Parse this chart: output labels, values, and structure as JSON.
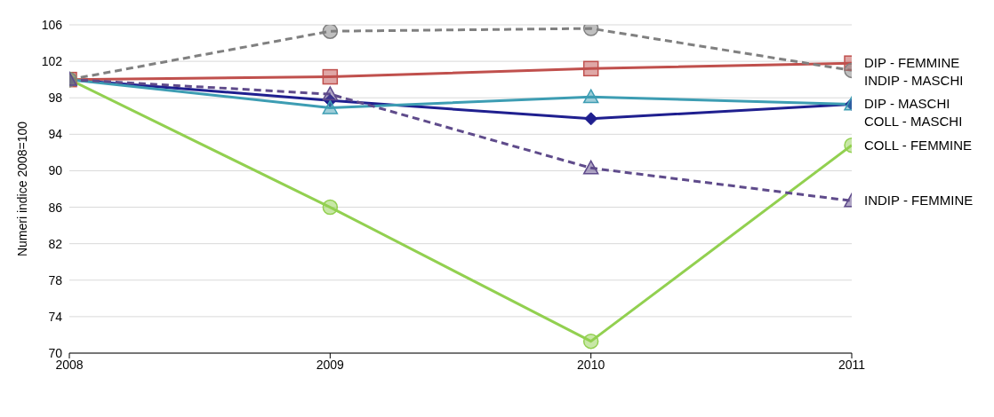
{
  "chart_data": {
    "type": "line",
    "ylabel": "Numeri indice 2008=100",
    "x": [
      2008,
      2009,
      2010,
      2011
    ],
    "xlim": [
      2008,
      2011
    ],
    "xticks": [
      2008,
      2009,
      2010,
      2011
    ],
    "ylim": [
      70,
      106
    ],
    "yticks": [
      70,
      74,
      78,
      82,
      86,
      90,
      94,
      98,
      102,
      106
    ],
    "grid": "y",
    "legend": false,
    "series": [
      {
        "name": "DIP - MASCHI",
        "color": "#1f1f8f",
        "values": [
          100,
          97.7,
          95.7,
          97.3
        ],
        "marker": "diamond",
        "line_style": "solid"
      },
      {
        "name": "DIP - FEMMINE",
        "color": "#c0504d",
        "values": [
          100,
          100.3,
          101.2,
          101.8
        ],
        "marker": "square",
        "line_style": "solid"
      },
      {
        "name": "COLL - MASCHI",
        "color": "#3d9db3",
        "values": [
          100,
          96.9,
          98.1,
          97.3
        ],
        "marker": "triangle",
        "line_style": "solid"
      },
      {
        "name": "COLL - FEMMINE",
        "color": "#92d050",
        "values": [
          100,
          86.0,
          71.3,
          92.8
        ],
        "marker": "circle",
        "line_style": "solid"
      },
      {
        "name": "INDIP - MASCHI",
        "color": "#808080",
        "values": [
          100,
          105.3,
          105.6,
          101.0
        ],
        "marker": "circle",
        "line_style": "dashed"
      },
      {
        "name": "INDIP - FEMMINE",
        "color": "#5f4b8b",
        "values": [
          100,
          98.4,
          90.3,
          86.7
        ],
        "marker": "triangle",
        "line_style": "dashed"
      }
    ]
  }
}
